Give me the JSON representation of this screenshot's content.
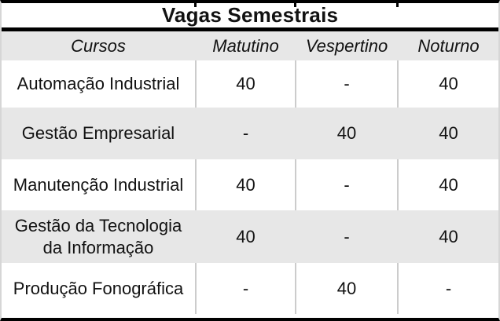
{
  "title": "Vagas Semestrais",
  "table": {
    "columns": [
      "Cursos",
      "Matutino",
      "Vespertino",
      "Noturno"
    ],
    "rows": [
      [
        "Automação Industrial",
        "40",
        "-",
        "40"
      ],
      [
        "Gestão Empresarial",
        "-",
        "40",
        "40"
      ],
      [
        "Manutenção Industrial",
        "40",
        "-",
        "40"
      ],
      [
        "Gestão da Tecnologia da Informação",
        "40",
        "-",
        "40"
      ],
      [
        "Produção Fonográfica",
        "-",
        "40",
        "-"
      ]
    ]
  },
  "colors": {
    "outer_border": "#000000",
    "shaded_row_background": "#e7e7e7",
    "grid_divider": "#cccccc",
    "text": "#121212"
  }
}
